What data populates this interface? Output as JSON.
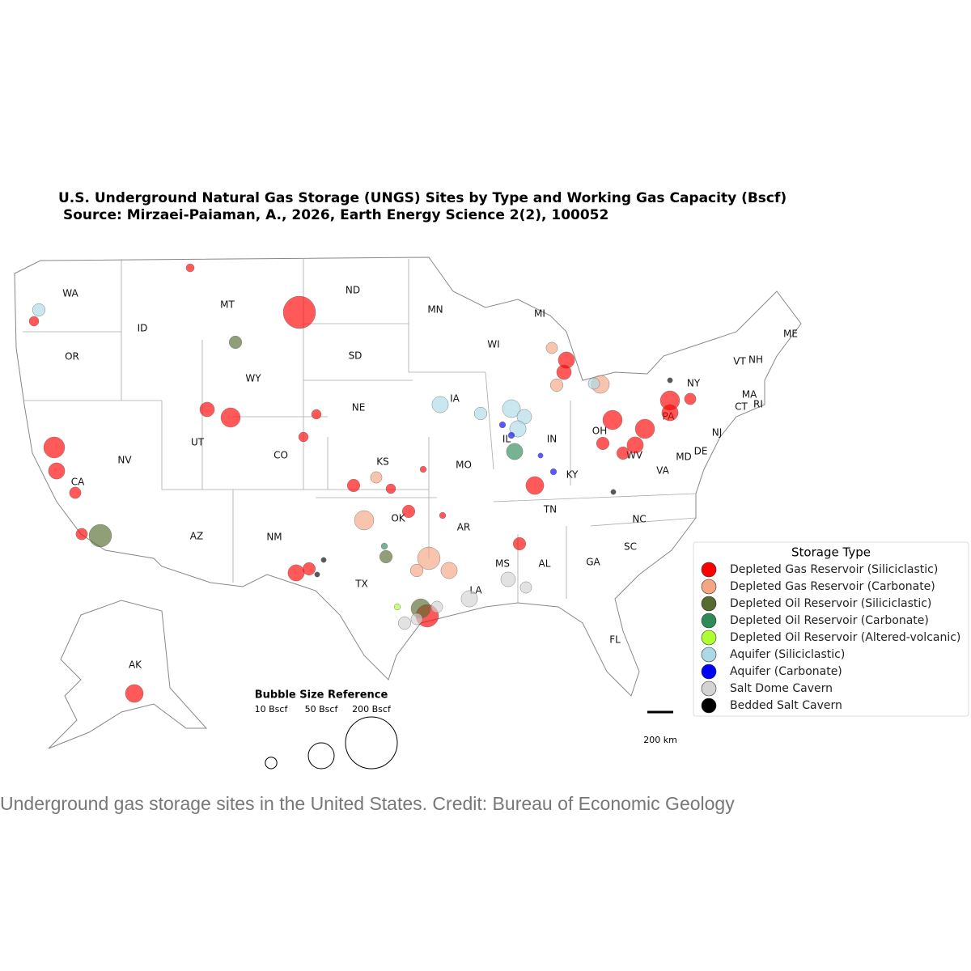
{
  "title": "U.S. Underground Natural Gas Storage (UNGS) Sites by Type and Working Gas Capacity (Bscf)",
  "subtitle": "Source: Mirzaei-Paiaman, A., 2026, Earth Energy Science 2(2), 100052",
  "states": [
    "WA",
    "OR",
    "CA",
    "NV",
    "ID",
    "MT",
    "WY",
    "UT",
    "CO",
    "AZ",
    "NM",
    "ND",
    "SD",
    "NE",
    "KS",
    "OK",
    "TX",
    "MN",
    "IA",
    "MO",
    "AR",
    "LA",
    "WI",
    "IL",
    "MS",
    "MI",
    "IN",
    "KY",
    "TN",
    "AL",
    "GA",
    "FL",
    "SC",
    "NC",
    "VA",
    "WV",
    "OH",
    "PA",
    "NY",
    "MD",
    "DE",
    "NJ",
    "CT",
    "RI",
    "MA",
    "VT",
    "NH",
    "ME",
    "AK"
  ],
  "legend_title": "Storage Type",
  "storage_types": [
    {
      "name": "Depleted Gas Reservoir (Siliciclastic)",
      "color": "#ff0000",
      "capacities": [
        78,
        5,
        7,
        33,
        20,
        10,
        10,
        16,
        28,
        12,
        12,
        7,
        20,
        12,
        20,
        16,
        28,
        12,
        28,
        28,
        20,
        20,
        12,
        24,
        12,
        38,
        24,
        10,
        3,
        3,
        7,
        7
      ]
    },
    {
      "name": "Depleted Gas Reservoir (Carbonate)",
      "color": "#f4a582",
      "capacities": [
        28,
        38,
        20,
        24,
        12,
        10,
        10,
        12
      ]
    },
    {
      "name": "Depleted Oil Reservoir (Siliciclastic)",
      "color": "#556b2f",
      "capacities": [
        38,
        12,
        12,
        28
      ]
    },
    {
      "name": "Depleted Oil Reservoir (Carbonate)",
      "color": "#2e8b57",
      "capacities": [
        20,
        3
      ]
    },
    {
      "name": "Depleted Oil Reservoir (Altered-volcanic)",
      "color": "#adff2f",
      "capacities": [
        3
      ]
    },
    {
      "name": "Aquifer (Siliciclastic)",
      "color": "#add8e6",
      "capacities": [
        12,
        20,
        24,
        16,
        20,
        12,
        10
      ]
    },
    {
      "name": "Aquifer (Carbonate)",
      "color": "#0000ff",
      "capacities": [
        3,
        3,
        3,
        2
      ]
    },
    {
      "name": "Salt Dome Cavern",
      "color": "#d3d3d3",
      "capacities": [
        12,
        10,
        16,
        10,
        20,
        10
      ]
    },
    {
      "name": "Bedded Salt Cavern",
      "color": "#000000",
      "capacities": [
        2,
        2,
        2,
        2
      ]
    }
  ],
  "bubble_reference": {
    "title": "Bubble Size Reference",
    "sizes": [
      {
        "value": 10,
        "label": "10 Bscf"
      },
      {
        "value": 50,
        "label": "50 Bscf"
      },
      {
        "value": 200,
        "label": "200 Bscf"
      }
    ]
  },
  "scale_bar": "200 km",
  "caption": "Underground gas storage sites in the United States. Credit: Bureau of Economic Geology"
}
